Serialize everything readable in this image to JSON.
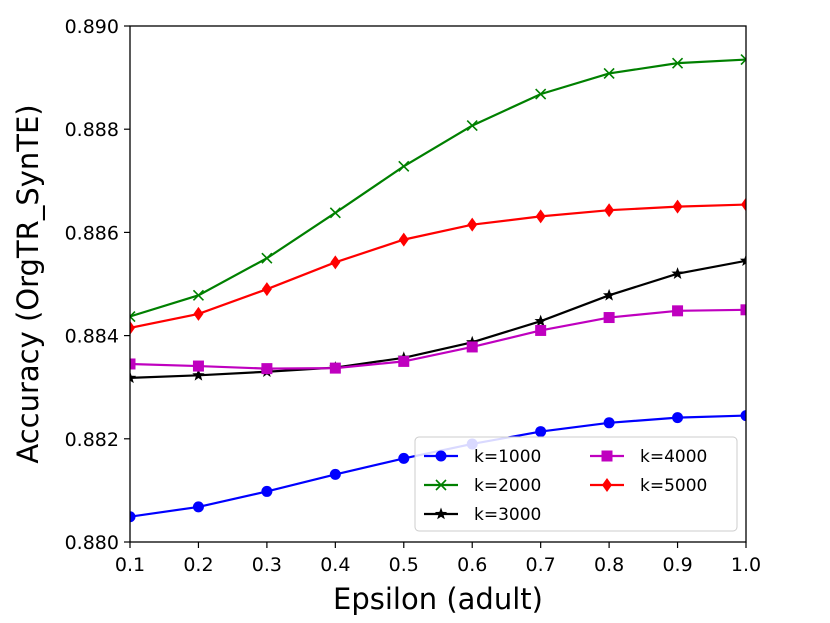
{
  "chart_data": {
    "type": "line",
    "title": "",
    "xlabel": "Epsilon (adult)",
    "ylabel": "Accuracy (OrgTR_SynTE)",
    "x": [
      0.1,
      0.2,
      0.3,
      0.4,
      0.5,
      0.6,
      0.7,
      0.8,
      0.9,
      1.0
    ],
    "xlim": [
      0.1,
      1.0
    ],
    "ylim": [
      0.88,
      0.89
    ],
    "xticks": [
      "0.1",
      "0.2",
      "0.3",
      "0.4",
      "0.5",
      "0.6",
      "0.7",
      "0.8",
      "0.9",
      "1.0"
    ],
    "yticks": [
      "0.880",
      "0.882",
      "0.884",
      "0.886",
      "0.888",
      "0.890"
    ],
    "grid": false,
    "legend_position": "bottom-right",
    "series": [
      {
        "name": "k=1000",
        "color": "#0000ff",
        "marker": "circle",
        "values": [
          0.88049,
          0.88068,
          0.88098,
          0.88131,
          0.88162,
          0.8819,
          0.88214,
          0.88231,
          0.88241,
          0.88245
        ]
      },
      {
        "name": "k=2000",
        "color": "#008000",
        "marker": "x",
        "values": [
          0.88437,
          0.88478,
          0.8855,
          0.88638,
          0.88728,
          0.88807,
          0.88868,
          0.88908,
          0.88928,
          0.88935
        ]
      },
      {
        "name": "k=3000",
        "color": "#000000",
        "marker": "star",
        "values": [
          0.88318,
          0.88323,
          0.8833,
          0.88338,
          0.88357,
          0.88387,
          0.88428,
          0.88478,
          0.8852,
          0.88545
        ]
      },
      {
        "name": "k=4000",
        "color": "#bf00bf",
        "marker": "square",
        "values": [
          0.88345,
          0.88341,
          0.88336,
          0.88337,
          0.8835,
          0.88378,
          0.8841,
          0.88435,
          0.88448,
          0.8845
        ]
      },
      {
        "name": "k=5000",
        "color": "#ff0000",
        "marker": "diamond",
        "values": [
          0.88415,
          0.88442,
          0.8849,
          0.88542,
          0.88586,
          0.88615,
          0.88631,
          0.88643,
          0.8865,
          0.88654
        ]
      }
    ]
  }
}
